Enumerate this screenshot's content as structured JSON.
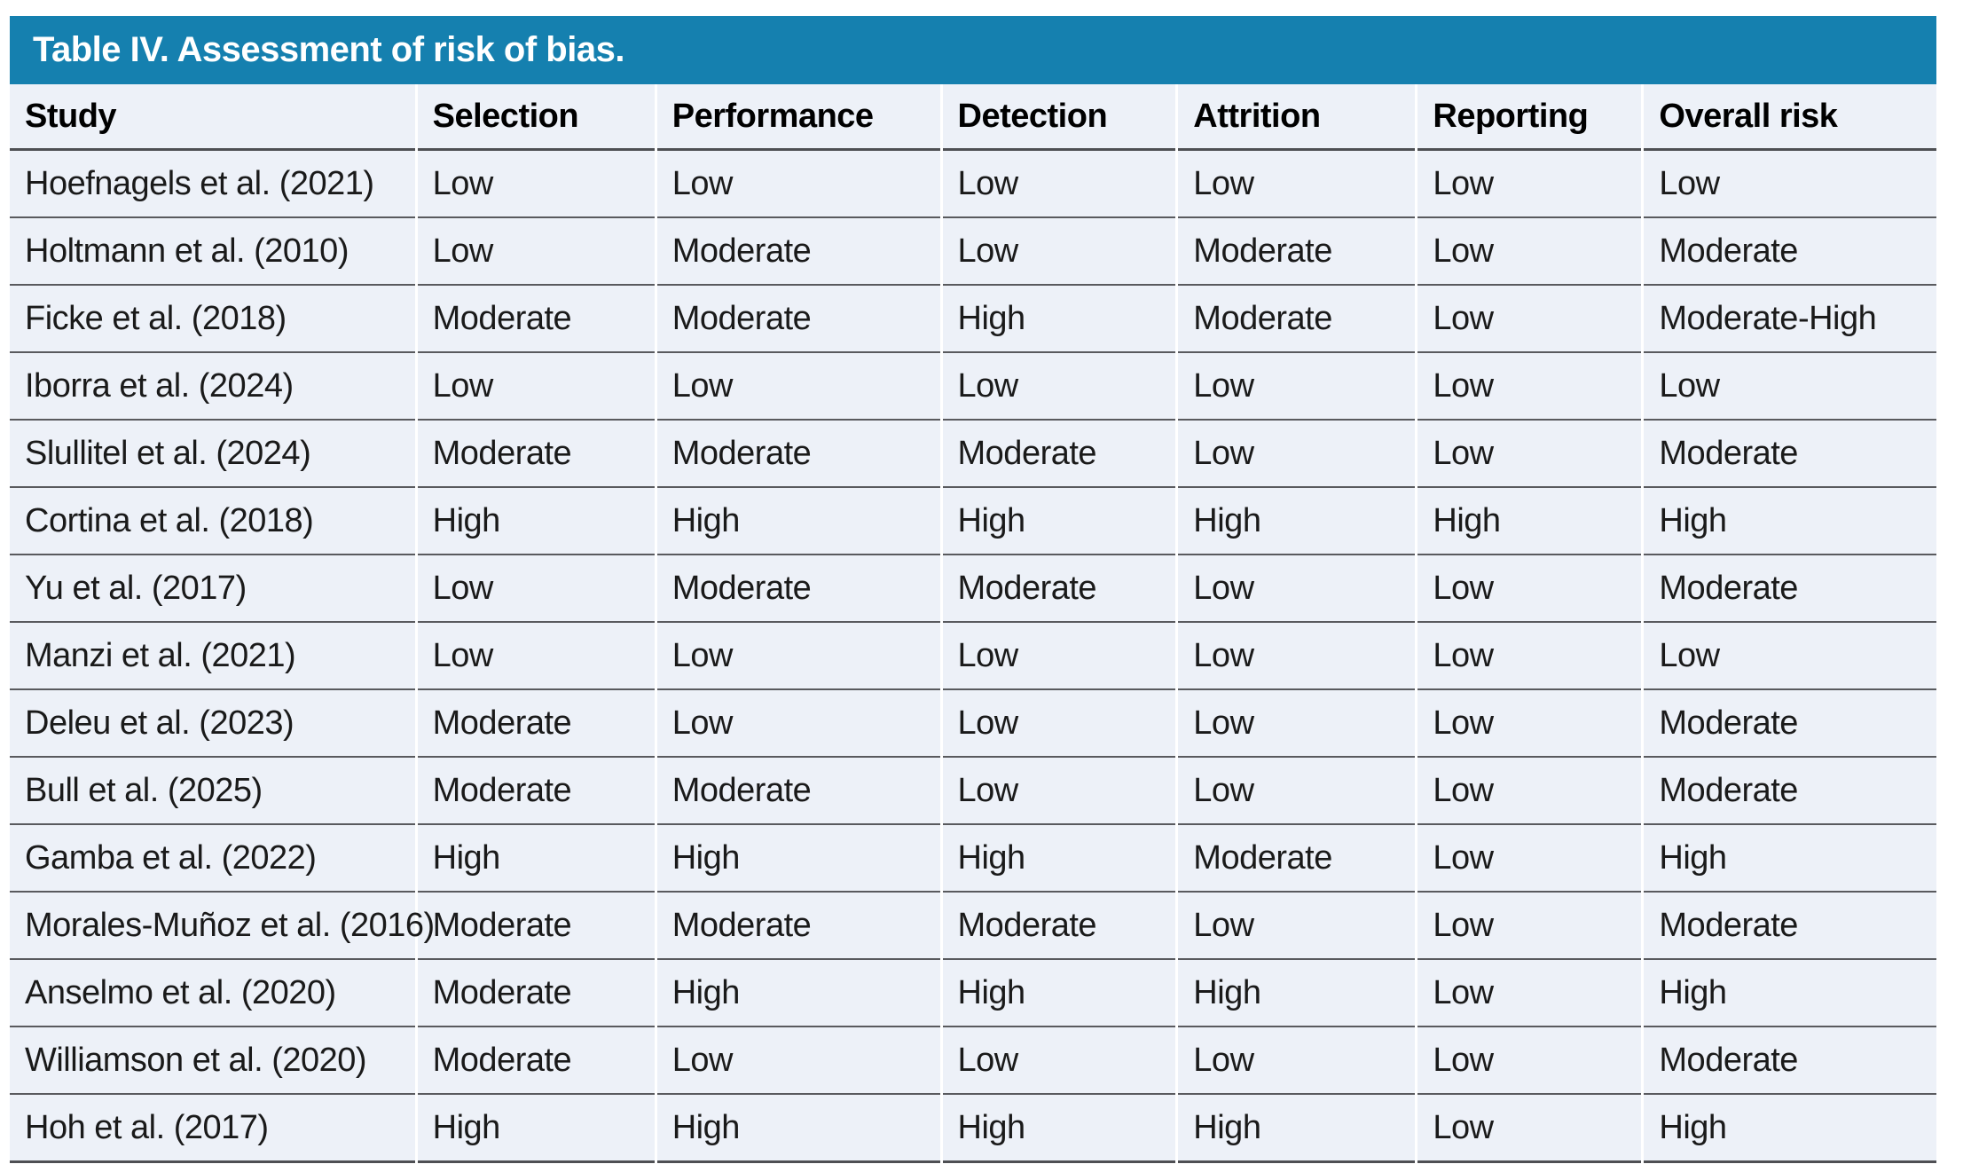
{
  "title_bar": {
    "label": "Table IV. Assessment of risk of bias."
  },
  "colors": {
    "title_bar_bg": "#1580AF",
    "title_bar_text": "#FFFFFF",
    "row_bg": "#EDF1F8",
    "separator": "#595A5E",
    "strong_border": "#4E4F53"
  },
  "table": {
    "columns": [
      "Study",
      "Selection",
      "Performance",
      "Detection",
      "Attrition",
      "Reporting",
      "Overall risk"
    ],
    "column_widths": [
      "21.2%",
      "12.4%",
      "14.8%",
      "12.2%",
      "12.4%",
      "11.7%",
      "15.3%"
    ],
    "rows": [
      {
        "study": "Hoefnagels et al. (2021)",
        "values": [
          "Low",
          "Low",
          "Low",
          "Low",
          "Low",
          "Low"
        ]
      },
      {
        "study": "Holtmann et al. (2010)",
        "values": [
          "Low",
          "Moderate",
          "Low",
          "Moderate",
          "Low",
          "Moderate"
        ]
      },
      {
        "study": "Ficke et al. (2018)",
        "values": [
          "Moderate",
          "Moderate",
          "High",
          "Moderate",
          "Low",
          "Moderate-High"
        ]
      },
      {
        "study": "Iborra et al. (2024)",
        "values": [
          "Low",
          "Low",
          "Low",
          "Low",
          "Low",
          "Low"
        ]
      },
      {
        "study": "Slullitel et al. (2024)",
        "values": [
          "Moderate",
          "Moderate",
          "Moderate",
          "Low",
          "Low",
          "Moderate"
        ]
      },
      {
        "study": "Cortina et al. (2018)",
        "values": [
          "High",
          "High",
          "High",
          "High",
          "High",
          "High"
        ]
      },
      {
        "study": "Yu et al. (2017)",
        "values": [
          "Low",
          "Moderate",
          "Moderate",
          "Low",
          "Low",
          "Moderate"
        ]
      },
      {
        "study": "Manzi et al. (2021)",
        "values": [
          "Low",
          "Low",
          "Low",
          "Low",
          "Low",
          "Low"
        ]
      },
      {
        "study": "Deleu et al. (2023)",
        "values": [
          "Moderate",
          "Low",
          "Low",
          "Low",
          "Low",
          "Moderate"
        ]
      },
      {
        "study": "Bull et al. (2025)",
        "values": [
          "Moderate",
          "Moderate",
          "Low",
          "Low",
          "Low",
          "Moderate"
        ]
      },
      {
        "study": "Gamba et al. (2022)",
        "values": [
          "High",
          "High",
          "High",
          "Moderate",
          "Low",
          "High"
        ]
      },
      {
        "study": "Morales-Muñoz et al. (2016)",
        "values": [
          "Moderate",
          "Moderate",
          "Moderate",
          "Low",
          "Low",
          "Moderate"
        ]
      },
      {
        "study": "Anselmo et al. (2020)",
        "values": [
          "Moderate",
          "High",
          "High",
          "High",
          "Low",
          "High"
        ]
      },
      {
        "study": "Williamson et al. (2020)",
        "values": [
          "Moderate",
          "Low",
          "Low",
          "Low",
          "Low",
          "Moderate"
        ]
      },
      {
        "study": "Hoh et al. (2017)",
        "values": [
          "High",
          "High",
          "High",
          "High",
          "Low",
          "High"
        ]
      }
    ]
  },
  "chart_data": {
    "type": "table",
    "title": "Table IV. Assessment of risk of bias.",
    "columns": [
      "Study",
      "Selection",
      "Performance",
      "Detection",
      "Attrition",
      "Reporting",
      "Overall risk"
    ],
    "rows": [
      [
        "Hoefnagels et al. (2021)",
        "Low",
        "Low",
        "Low",
        "Low",
        "Low",
        "Low"
      ],
      [
        "Holtmann et al. (2010)",
        "Low",
        "Moderate",
        "Low",
        "Moderate",
        "Low",
        "Moderate"
      ],
      [
        "Ficke et al. (2018)",
        "Moderate",
        "Moderate",
        "High",
        "Moderate",
        "Low",
        "Moderate-High"
      ],
      [
        "Iborra et al. (2024)",
        "Low",
        "Low",
        "Low",
        "Low",
        "Low",
        "Low"
      ],
      [
        "Slullitel et al. (2024)",
        "Moderate",
        "Moderate",
        "Moderate",
        "Low",
        "Low",
        "Moderate"
      ],
      [
        "Cortina et al. (2018)",
        "High",
        "High",
        "High",
        "High",
        "High",
        "High"
      ],
      [
        "Yu et al. (2017)",
        "Low",
        "Moderate",
        "Moderate",
        "Low",
        "Low",
        "Moderate"
      ],
      [
        "Manzi et al. (2021)",
        "Low",
        "Low",
        "Low",
        "Low",
        "Low",
        "Low"
      ],
      [
        "Deleu et al. (2023)",
        "Moderate",
        "Low",
        "Low",
        "Low",
        "Low",
        "Moderate"
      ],
      [
        "Bull et al. (2025)",
        "Moderate",
        "Moderate",
        "Low",
        "Low",
        "Low",
        "Moderate"
      ],
      [
        "Gamba et al. (2022)",
        "High",
        "High",
        "High",
        "Moderate",
        "Low",
        "High"
      ],
      [
        "Morales-Muñoz et al. (2016)",
        "Moderate",
        "Moderate",
        "Moderate",
        "Low",
        "Low",
        "Moderate"
      ],
      [
        "Anselmo et al. (2020)",
        "Moderate",
        "High",
        "High",
        "High",
        "Low",
        "High"
      ],
      [
        "Williamson et al. (2020)",
        "Moderate",
        "Low",
        "Low",
        "Low",
        "Low",
        "Moderate"
      ],
      [
        "Hoh et al. (2017)",
        "High",
        "High",
        "High",
        "High",
        "Low",
        "High"
      ]
    ]
  }
}
